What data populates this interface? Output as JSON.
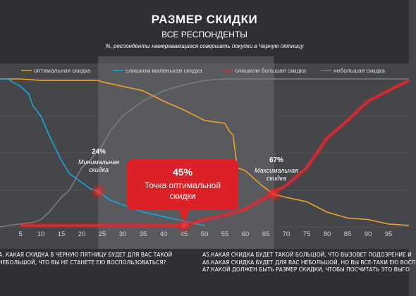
{
  "header": {
    "title": "РАЗМЕР СКИДКИ",
    "subtitle": "ВСЕ РЕСПОНДЕНТЫ",
    "note": "%,  респонденты намеревающиеся совершать покупки в Черную пятницу"
  },
  "chart_data": {
    "type": "line",
    "xlabel": "",
    "ylabel": "",
    "xlim": [
      0,
      100
    ],
    "ylim": [
      0,
      100
    ],
    "x_ticks": [
      5,
      10,
      15,
      20,
      25,
      30,
      35,
      40,
      45,
      50,
      55,
      60,
      65,
      70,
      75,
      80,
      85,
      90,
      95
    ],
    "legend_position": "top",
    "shaded_range": [
      24,
      67
    ],
    "series": [
      {
        "name": "оптимальная скидка",
        "color": "#f0a12c",
        "points": [
          [
            0,
            100
          ],
          [
            5,
            100
          ],
          [
            10,
            99
          ],
          [
            15,
            99
          ],
          [
            20,
            99
          ],
          [
            24,
            99
          ],
          [
            25,
            98
          ],
          [
            30,
            95
          ],
          [
            35,
            92
          ],
          [
            40,
            85
          ],
          [
            45,
            79
          ],
          [
            50,
            72
          ],
          [
            55,
            70
          ],
          [
            56,
            65
          ],
          [
            57,
            62
          ],
          [
            58,
            40
          ],
          [
            60,
            38
          ],
          [
            62,
            33
          ],
          [
            64,
            28
          ],
          [
            66,
            24
          ],
          [
            67,
            22
          ],
          [
            70,
            20
          ],
          [
            75,
            17
          ],
          [
            80,
            10
          ],
          [
            85,
            6
          ],
          [
            90,
            5
          ],
          [
            95,
            2
          ],
          [
            100,
            1
          ]
        ]
      },
      {
        "name": "слишком маленькая скидка",
        "color": "#1aa7dc",
        "points": [
          [
            0,
            100
          ],
          [
            2,
            100
          ],
          [
            3,
            98
          ],
          [
            5,
            95
          ],
          [
            7,
            90
          ],
          [
            8,
            82
          ],
          [
            10,
            75
          ],
          [
            12,
            62
          ],
          [
            15,
            45
          ],
          [
            17,
            36
          ],
          [
            20,
            30
          ],
          [
            22,
            26
          ],
          [
            24,
            24
          ],
          [
            25,
            22
          ],
          [
            27,
            18
          ],
          [
            30,
            15
          ],
          [
            32,
            13
          ],
          [
            35,
            10
          ],
          [
            40,
            7
          ],
          [
            45,
            4
          ],
          [
            48,
            2
          ],
          [
            50,
            1
          ]
        ]
      },
      {
        "name": "слишком большая скидка",
        "color": "#e8262d",
        "points": [
          [
            5,
            1
          ],
          [
            10,
            1
          ],
          [
            15,
            1
          ],
          [
            20,
            1
          ],
          [
            25,
            1
          ],
          [
            30,
            1
          ],
          [
            35,
            1
          ],
          [
            40,
            1
          ],
          [
            45,
            1
          ],
          [
            50,
            5
          ],
          [
            55,
            8
          ],
          [
            60,
            12
          ],
          [
            65,
            20
          ],
          [
            67,
            24
          ],
          [
            70,
            28
          ],
          [
            75,
            40
          ],
          [
            80,
            60
          ],
          [
            85,
            72
          ],
          [
            90,
            85
          ],
          [
            95,
            92
          ],
          [
            100,
            99
          ]
        ]
      },
      {
        "name": "небольшая скидка",
        "color": "#7a7c7f",
        "points": [
          [
            0,
            0
          ],
          [
            2,
            1
          ],
          [
            5,
            2
          ],
          [
            8,
            3
          ],
          [
            10,
            5
          ],
          [
            12,
            10
          ],
          [
            15,
            20
          ],
          [
            17,
            25
          ],
          [
            20,
            40
          ],
          [
            22,
            45
          ],
          [
            25,
            55
          ],
          [
            27,
            65
          ],
          [
            30,
            75
          ],
          [
            35,
            85
          ],
          [
            40,
            92
          ],
          [
            45,
            96
          ],
          [
            50,
            99
          ],
          [
            55,
            100
          ],
          [
            60,
            100
          ],
          [
            65,
            100
          ],
          [
            70,
            100
          ],
          [
            75,
            100
          ],
          [
            80,
            100
          ],
          [
            85,
            100
          ],
          [
            90,
            100
          ],
          [
            95,
            100
          ],
          [
            100,
            100
          ]
        ]
      }
    ],
    "annotations": [
      {
        "value": "24%",
        "label_lines": [
          "Минимальная",
          "скидка"
        ],
        "x": 24,
        "y": 24
      },
      {
        "value": "45%",
        "label_lines": [
          "Точка оптимальной",
          "скидки"
        ],
        "x": 45,
        "y": 1
      },
      {
        "value": "67%",
        "label_lines": [
          "Максимальная",
          "скидка"
        ],
        "x": 67,
        "y": 22
      }
    ]
  },
  "footer": {
    "left_lines": [
      "А.  КАКАЯ СКИДКА В ЧЕРНУЮ ПЯТНИЦУ  БУДЕТ ДЛЯ ВАС ТАКОЙ",
      "НЕБОЛЬШОЙ,  ЧТО ВЫ НЕ СТАНЕТЕ ЕЮ ВОСПОЛЬЗОВАТЬСЯ?"
    ],
    "right_lines": [
      "А5.КАКАЯ СКИДКА БУДЕТ ТАКОЙ БОЛЬШОЙ,  ЧТО ВЫЗОВЕТ ПОДОЗРЕНИЕ И",
      "А6.КАКАЯ СКИДКА БУДЕТ ДЛЯ ВАС НЕБОЛЬШОЙ,  НО ВЫ ВСЕ-ТАКИ ЕЮ ВОСП",
      "А7.КАКОЙ ДОЛЖЕН БЫТЬ РАЗМЕР СКИДКИ,  ЧТОБЫ ПОСЧИТАТЬ  ЭТО ВЫГО"
    ]
  }
}
